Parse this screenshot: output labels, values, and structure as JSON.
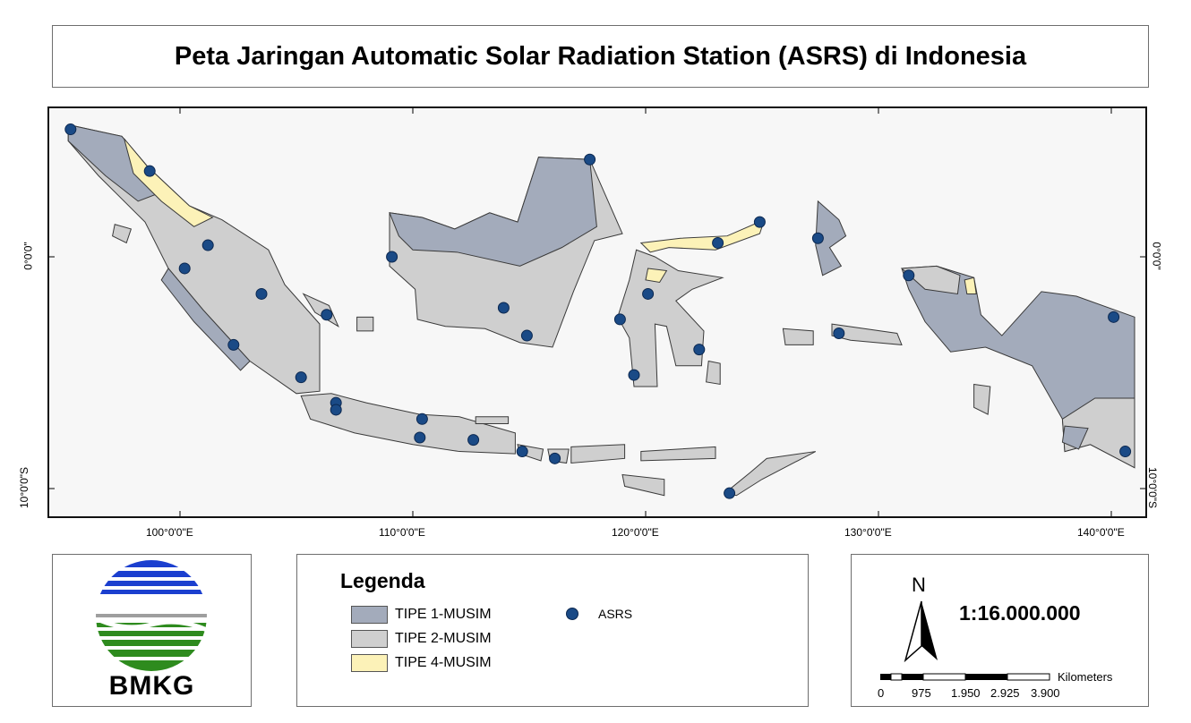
{
  "title": "Peta Jaringan Automatic Solar Radiation Station (ASRS) di Indonesia",
  "map": {
    "longitude_labels": [
      "100°0'0\"E",
      "110°0'0\"E",
      "120°0'0\"E",
      "130°0'0\"E",
      "140°0'0\"E"
    ],
    "latitude_labels": [
      "0°0'0\"",
      "10°0'0\"S"
    ],
    "colors": {
      "tipe1": "#a3abbb",
      "tipe2": "#cfcfcf",
      "tipe4": "#fcf2b8",
      "asrs": "#1a4a86",
      "background": "#f7f7f7"
    },
    "stations_lonlat": [
      [
        95.3,
        5.5
      ],
      [
        98.7,
        3.7
      ],
      [
        101.2,
        0.5
      ],
      [
        100.2,
        -0.5
      ],
      [
        103.5,
        -1.6
      ],
      [
        106.3,
        -2.5
      ],
      [
        102.3,
        -3.8
      ],
      [
        105.2,
        -5.2
      ],
      [
        106.7,
        -6.3
      ],
      [
        106.7,
        -6.6
      ],
      [
        110.4,
        -7.0
      ],
      [
        110.3,
        -7.8
      ],
      [
        112.6,
        -7.9
      ],
      [
        114.7,
        -8.4
      ],
      [
        116.1,
        -8.7
      ],
      [
        117.6,
        4.2
      ],
      [
        109.1,
        0.0
      ],
      [
        113.9,
        -2.2
      ],
      [
        114.9,
        -3.4
      ],
      [
        118.9,
        -2.7
      ],
      [
        120.1,
        -1.6
      ],
      [
        119.5,
        -5.1
      ],
      [
        122.3,
        -4.0
      ],
      [
        123.1,
        0.6
      ],
      [
        124.9,
        1.5
      ],
      [
        127.4,
        0.8
      ],
      [
        131.3,
        -0.8
      ],
      [
        128.3,
        -3.3
      ],
      [
        123.6,
        -10.2
      ],
      [
        140.1,
        -2.6
      ],
      [
        140.6,
        -8.4
      ]
    ]
  },
  "logo": {
    "text": "BMKG"
  },
  "legend": {
    "title": "Legenda",
    "items": [
      {
        "label": "TIPE 1-MUSIM",
        "color": "#a3abbb"
      },
      {
        "label": "TIPE 2-MUSIM",
        "color": "#cfcfcf"
      },
      {
        "label": "TIPE 4-MUSIM",
        "color": "#fcf2b8"
      }
    ],
    "point_label": "ASRS"
  },
  "scale": {
    "north_label": "N",
    "ratio": "1:16.000.000",
    "unit": "Kilometers",
    "ticks": [
      "0",
      "975",
      "1.950",
      "2.925",
      "3.900"
    ]
  }
}
